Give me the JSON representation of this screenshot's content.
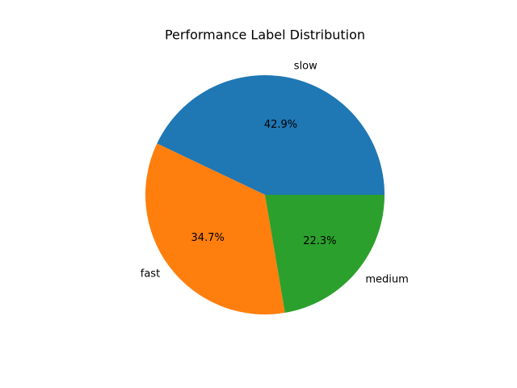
{
  "chart_data": {
    "type": "pie",
    "title": "Performance Label Distribution",
    "categories": [
      "slow",
      "fast",
      "medium"
    ],
    "values": [
      42.9,
      34.7,
      22.3
    ],
    "value_labels": [
      "42.9%",
      "34.7%",
      "22.3%"
    ],
    "colors": [
      "#1f77b4",
      "#ff7f0e",
      "#2ca02c"
    ]
  }
}
